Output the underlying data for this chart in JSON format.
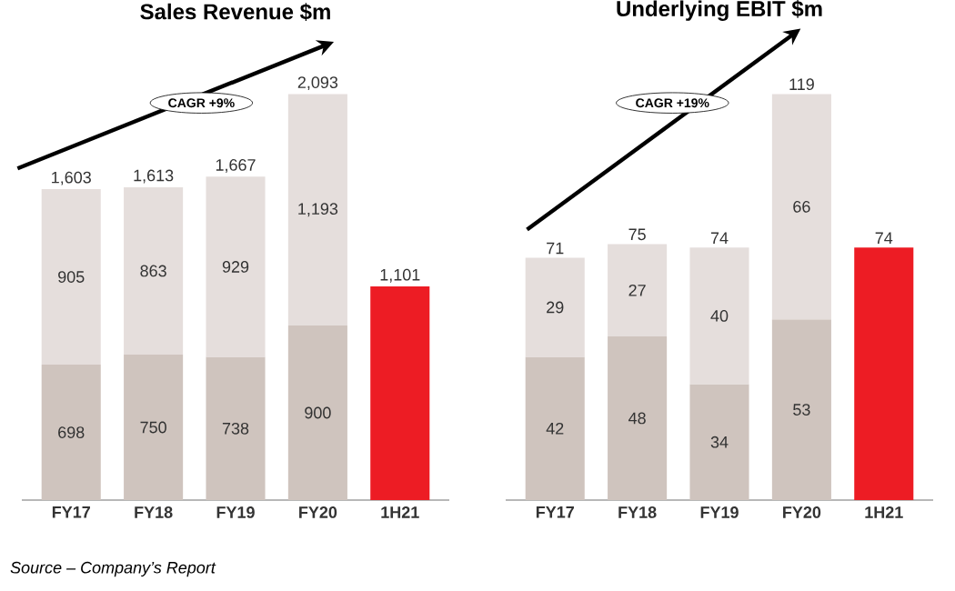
{
  "chart_data": [
    {
      "type": "bar",
      "title": "Sales Revenue $m",
      "stacked": true,
      "categories": [
        "FY17",
        "FY18",
        "FY19",
        "FY20",
        "1H21"
      ],
      "series": [
        {
          "color": "#cfc4be",
          "values": [
            698,
            750,
            738,
            900,
            null
          ],
          "value_labels": [
            "698",
            "750",
            "738",
            "900",
            null
          ]
        },
        {
          "color": "#e5dedc",
          "values": [
            905,
            863,
            929,
            1193,
            null
          ],
          "value_labels": [
            "905",
            "863",
            "929",
            "1,193",
            null
          ]
        },
        {
          "color": "#ed1c24",
          "values": [
            null,
            null,
            null,
            null,
            1101
          ]
        }
      ],
      "totals": [
        "1,603",
        "1,613",
        "1,667",
        "2,093",
        "1,101"
      ],
      "annotations": [
        "CAGR +9%",
        "Source – Company’s Report"
      ]
    },
    {
      "type": "bar",
      "title": "Underlying EBIT $m",
      "stacked": true,
      "categories": [
        "FY17",
        "FY18",
        "FY19",
        "FY20",
        "1H21"
      ],
      "series": [
        {
          "color": "#cfc4be",
          "values": [
            42,
            48,
            34,
            53,
            null
          ],
          "value_labels": [
            "42",
            "48",
            "34",
            "53",
            null
          ]
        },
        {
          "color": "#e5dedc",
          "values": [
            29,
            27,
            40,
            66,
            null
          ],
          "value_labels": [
            "29",
            "27",
            "40",
            "66",
            null
          ]
        },
        {
          "color": "#ed1c24",
          "values": [
            null,
            null,
            null,
            null,
            74
          ]
        }
      ],
      "totals": [
        "71",
        "75",
        "74",
        "119",
        "74"
      ],
      "annotations": [
        "CAGR +19%"
      ]
    }
  ]
}
